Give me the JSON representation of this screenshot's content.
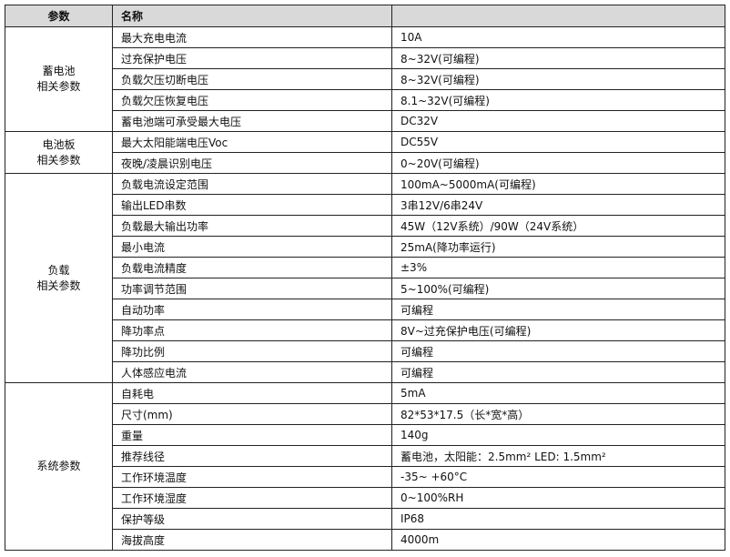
{
  "header": {
    "param": "参数",
    "name": "名称",
    "value": ""
  },
  "groups": [
    {
      "label": [
        "蓄电池",
        "相关参数"
      ],
      "rows": [
        [
          "最大充电电流",
          "10A"
        ],
        [
          "过充保护电压",
          "8~32V(可编程)"
        ],
        [
          "负载欠压切断电压",
          "8~32V(可编程)"
        ],
        [
          "负载欠压恢复电压",
          "8.1~32V(可编程)"
        ],
        [
          "蓄电池端可承受最大电压",
          "DC32V"
        ]
      ]
    },
    {
      "label": [
        "电池板",
        "相关参数"
      ],
      "rows": [
        [
          "最大太阳能端电压Voc",
          "DC55V"
        ],
        [
          "夜晚/凌晨识别电压",
          "0~20V(可编程)"
        ]
      ]
    },
    {
      "label": [
        "负载",
        "相关参数"
      ],
      "rows": [
        [
          "负载电流设定范围",
          "100mA~5000mA(可编程)"
        ],
        [
          "输出LED串数",
          "3串12V/6串24V"
        ],
        [
          "负载最大输出功率",
          "45W（12V系统）/90W（24V系统）"
        ],
        [
          "最小电流",
          "25mA(降功率运行)"
        ],
        [
          "负载电流精度",
          "±3%"
        ],
        [
          "功率调节范围",
          "5~100%(可编程)"
        ],
        [
          "自动功率",
          "可编程"
        ],
        [
          "降功率点",
          "8V~过充保护电压(可编程)"
        ],
        [
          "降功比例",
          "可编程"
        ],
        [
          "人体感应电流",
          "可编程"
        ]
      ]
    },
    {
      "label": [
        "系统参数"
      ],
      "rows": [
        [
          "自耗电",
          "5mA"
        ],
        [
          "尺寸(mm)",
          "82*53*17.5（长*宽*高）"
        ],
        [
          "重量",
          "140g"
        ],
        [
          "推荐线径",
          "蓄电池，太阳能：2.5mm²    LED: 1.5mm²"
        ],
        [
          "工作环境温度",
          "-35~ +60°C"
        ],
        [
          "工作环境湿度",
          "0~100%RH"
        ],
        [
          "保护等级",
          "IP68"
        ],
        [
          "海拔高度",
          "4000m"
        ]
      ]
    }
  ]
}
